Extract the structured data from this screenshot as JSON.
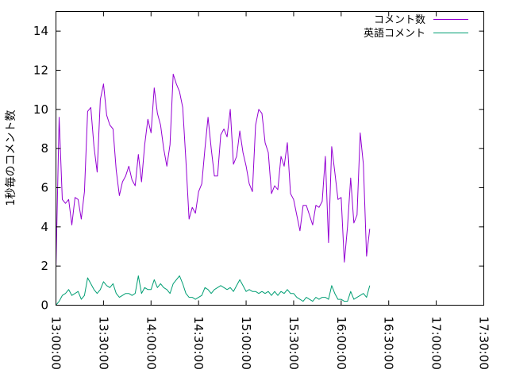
{
  "chart_data": {
    "type": "line",
    "title": "",
    "xlabel": "",
    "ylabel": "1秒毎のコメント数",
    "xlim": [
      "13:00:00",
      "17:30:00"
    ],
    "ylim": [
      0,
      15
    ],
    "x_ticks": [
      "13:00:00",
      "13:30:00",
      "14:00:00",
      "14:30:00",
      "15:00:00",
      "15:30:00",
      "16:00:00",
      "16:30:00",
      "17:00:00",
      "17:30:00"
    ],
    "y_ticks": [
      0,
      2,
      4,
      6,
      8,
      10,
      12,
      14
    ],
    "x_tick_rotation": "rotated 90° clockwise",
    "grid": false,
    "legend_position": "top-right",
    "series": [
      {
        "name": "コメント数",
        "color": "#9400d3",
        "points": [
          [
            "13:00:00",
            1.9
          ],
          [
            "13:02:00",
            9.6
          ],
          [
            "13:04:00",
            5.4
          ],
          [
            "13:06:00",
            5.2
          ],
          [
            "13:08:00",
            5.4
          ],
          [
            "13:10:00",
            4.1
          ],
          [
            "13:12:00",
            5.5
          ],
          [
            "13:14:00",
            5.4
          ],
          [
            "13:16:00",
            4.4
          ],
          [
            "13:18:00",
            5.8
          ],
          [
            "13:20:00",
            9.9
          ],
          [
            "13:22:00",
            10.1
          ],
          [
            "13:24:00",
            8.1
          ],
          [
            "13:26:00",
            6.8
          ],
          [
            "13:28:00",
            10.5
          ],
          [
            "13:30:00",
            11.3
          ],
          [
            "13:32:00",
            9.7
          ],
          [
            "13:34:00",
            9.2
          ],
          [
            "13:36:00",
            9.0
          ],
          [
            "13:38:00",
            6.9
          ],
          [
            "13:40:00",
            5.6
          ],
          [
            "13:42:00",
            6.3
          ],
          [
            "13:44:00",
            6.6
          ],
          [
            "13:46:00",
            7.1
          ],
          [
            "13:48:00",
            6.4
          ],
          [
            "13:50:00",
            6.1
          ],
          [
            "13:52:00",
            7.7
          ],
          [
            "13:54:00",
            6.3
          ],
          [
            "13:56:00",
            8.2
          ],
          [
            "13:58:00",
            9.5
          ],
          [
            "14:00:00",
            8.8
          ],
          [
            "14:02:00",
            11.1
          ],
          [
            "14:04:00",
            9.8
          ],
          [
            "14:06:00",
            9.2
          ],
          [
            "14:08:00",
            8.0
          ],
          [
            "14:10:00",
            7.1
          ],
          [
            "14:12:00",
            8.2
          ],
          [
            "14:14:00",
            11.8
          ],
          [
            "14:16:00",
            11.3
          ],
          [
            "14:18:00",
            10.9
          ],
          [
            "14:20:00",
            10.1
          ],
          [
            "14:22:00",
            7.4
          ],
          [
            "14:24:00",
            4.4
          ],
          [
            "14:26:00",
            5.0
          ],
          [
            "14:28:00",
            4.7
          ],
          [
            "14:30:00",
            5.8
          ],
          [
            "14:32:00",
            6.2
          ],
          [
            "14:34:00",
            8.0
          ],
          [
            "14:36:00",
            9.6
          ],
          [
            "14:38:00",
            8.0
          ],
          [
            "14:40:00",
            6.6
          ],
          [
            "14:42:00",
            6.6
          ],
          [
            "14:44:00",
            8.7
          ],
          [
            "14:46:00",
            9.0
          ],
          [
            "14:48:00",
            8.6
          ],
          [
            "14:50:00",
            10.0
          ],
          [
            "14:52:00",
            7.2
          ],
          [
            "14:54:00",
            7.6
          ],
          [
            "14:56:00",
            8.9
          ],
          [
            "14:58:00",
            7.8
          ],
          [
            "15:00:00",
            7.1
          ],
          [
            "15:02:00",
            6.2
          ],
          [
            "15:04:00",
            5.8
          ],
          [
            "15:06:00",
            9.2
          ],
          [
            "15:08:00",
            10.0
          ],
          [
            "15:10:00",
            9.8
          ],
          [
            "15:12:00",
            8.3
          ],
          [
            "15:14:00",
            7.8
          ],
          [
            "15:16:00",
            5.7
          ],
          [
            "15:18:00",
            6.1
          ],
          [
            "15:20:00",
            5.9
          ],
          [
            "15:22:00",
            7.6
          ],
          [
            "15:24:00",
            7.1
          ],
          [
            "15:26:00",
            8.3
          ],
          [
            "15:28:00",
            5.7
          ],
          [
            "15:30:00",
            5.4
          ],
          [
            "15:32:00",
            4.6
          ],
          [
            "15:34:00",
            3.8
          ],
          [
            "15:36:00",
            5.1
          ],
          [
            "15:38:00",
            5.1
          ],
          [
            "15:40:00",
            4.6
          ],
          [
            "15:42:00",
            4.1
          ],
          [
            "15:44:00",
            5.1
          ],
          [
            "15:46:00",
            5.0
          ],
          [
            "15:48:00",
            5.3
          ],
          [
            "15:50:00",
            7.6
          ],
          [
            "15:52:00",
            3.2
          ],
          [
            "15:54:00",
            8.1
          ],
          [
            "15:56:00",
            6.8
          ],
          [
            "15:58:00",
            5.4
          ],
          [
            "16:00:00",
            5.5
          ],
          [
            "16:02:00",
            2.2
          ],
          [
            "16:04:00",
            4.0
          ],
          [
            "16:06:00",
            6.5
          ],
          [
            "16:08:00",
            4.2
          ],
          [
            "16:10:00",
            4.6
          ],
          [
            "16:12:00",
            8.8
          ],
          [
            "16:14:00",
            7.2
          ],
          [
            "16:16:00",
            2.5
          ],
          [
            "16:18:00",
            3.9
          ]
        ]
      },
      {
        "name": "英語コメント",
        "color": "#009e73",
        "points": [
          [
            "13:00:00",
            0.0
          ],
          [
            "13:02:00",
            0.2
          ],
          [
            "13:04:00",
            0.5
          ],
          [
            "13:06:00",
            0.6
          ],
          [
            "13:08:00",
            0.8
          ],
          [
            "13:10:00",
            0.5
          ],
          [
            "13:12:00",
            0.6
          ],
          [
            "13:14:00",
            0.7
          ],
          [
            "13:16:00",
            0.3
          ],
          [
            "13:18:00",
            0.5
          ],
          [
            "13:20:00",
            1.4
          ],
          [
            "13:22:00",
            1.1
          ],
          [
            "13:24:00",
            0.8
          ],
          [
            "13:26:00",
            0.6
          ],
          [
            "13:28:00",
            0.8
          ],
          [
            "13:30:00",
            1.2
          ],
          [
            "13:32:00",
            1.0
          ],
          [
            "13:34:00",
            0.9
          ],
          [
            "13:36:00",
            1.1
          ],
          [
            "13:38:00",
            0.6
          ],
          [
            "13:40:00",
            0.4
          ],
          [
            "13:42:00",
            0.5
          ],
          [
            "13:44:00",
            0.6
          ],
          [
            "13:46:00",
            0.6
          ],
          [
            "13:48:00",
            0.5
          ],
          [
            "13:50:00",
            0.6
          ],
          [
            "13:52:00",
            1.5
          ],
          [
            "13:54:00",
            0.6
          ],
          [
            "13:56:00",
            0.9
          ],
          [
            "13:58:00",
            0.8
          ],
          [
            "14:00:00",
            0.8
          ],
          [
            "14:02:00",
            1.3
          ],
          [
            "14:04:00",
            0.9
          ],
          [
            "14:06:00",
            1.1
          ],
          [
            "14:08:00",
            0.9
          ],
          [
            "14:10:00",
            0.8
          ],
          [
            "14:12:00",
            0.6
          ],
          [
            "14:14:00",
            1.1
          ],
          [
            "14:16:00",
            1.3
          ],
          [
            "14:18:00",
            1.5
          ],
          [
            "14:20:00",
            1.1
          ],
          [
            "14:22:00",
            0.6
          ],
          [
            "14:24:00",
            0.4
          ],
          [
            "14:26:00",
            0.4
          ],
          [
            "14:28:00",
            0.3
          ],
          [
            "14:30:00",
            0.4
          ],
          [
            "14:32:00",
            0.5
          ],
          [
            "14:34:00",
            0.9
          ],
          [
            "14:36:00",
            0.8
          ],
          [
            "14:38:00",
            0.6
          ],
          [
            "14:40:00",
            0.8
          ],
          [
            "14:42:00",
            0.9
          ],
          [
            "14:44:00",
            1.0
          ],
          [
            "14:46:00",
            0.9
          ],
          [
            "14:48:00",
            0.8
          ],
          [
            "14:50:00",
            0.9
          ],
          [
            "14:52:00",
            0.7
          ],
          [
            "14:54:00",
            1.0
          ],
          [
            "14:56:00",
            1.3
          ],
          [
            "14:58:00",
            1.0
          ],
          [
            "15:00:00",
            0.7
          ],
          [
            "15:02:00",
            0.8
          ],
          [
            "15:04:00",
            0.7
          ],
          [
            "15:06:00",
            0.7
          ],
          [
            "15:08:00",
            0.6
          ],
          [
            "15:10:00",
            0.7
          ],
          [
            "15:12:00",
            0.6
          ],
          [
            "15:14:00",
            0.7
          ],
          [
            "15:16:00",
            0.5
          ],
          [
            "15:18:00",
            0.7
          ],
          [
            "15:20:00",
            0.5
          ],
          [
            "15:22:00",
            0.7
          ],
          [
            "15:24:00",
            0.6
          ],
          [
            "15:26:00",
            0.8
          ],
          [
            "15:28:00",
            0.6
          ],
          [
            "15:30:00",
            0.6
          ],
          [
            "15:32:00",
            0.4
          ],
          [
            "15:34:00",
            0.3
          ],
          [
            "15:36:00",
            0.2
          ],
          [
            "15:38:00",
            0.4
          ],
          [
            "15:40:00",
            0.3
          ],
          [
            "15:42:00",
            0.2
          ],
          [
            "15:44:00",
            0.4
          ],
          [
            "15:46:00",
            0.3
          ],
          [
            "15:48:00",
            0.4
          ],
          [
            "15:50:00",
            0.4
          ],
          [
            "15:52:00",
            0.3
          ],
          [
            "15:54:00",
            1.0
          ],
          [
            "15:56:00",
            0.6
          ],
          [
            "15:58:00",
            0.3
          ],
          [
            "16:00:00",
            0.3
          ],
          [
            "16:02:00",
            0.2
          ],
          [
            "16:04:00",
            0.2
          ],
          [
            "16:06:00",
            0.7
          ],
          [
            "16:08:00",
            0.3
          ],
          [
            "16:10:00",
            0.4
          ],
          [
            "16:12:00",
            0.5
          ],
          [
            "16:14:00",
            0.6
          ],
          [
            "16:16:00",
            0.4
          ],
          [
            "16:18:00",
            1.0
          ]
        ]
      }
    ]
  }
}
